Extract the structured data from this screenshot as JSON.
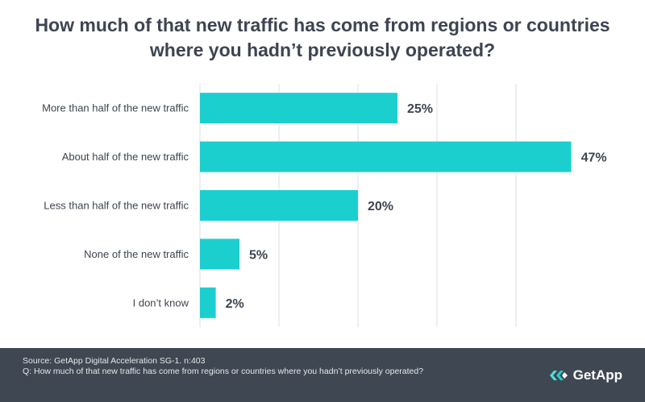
{
  "chart_data": {
    "type": "bar",
    "orientation": "horizontal",
    "title": "How much of that new traffic has come from regions or countries where you hadn’t previously operated?",
    "categories": [
      "More than half of the new traffic",
      "About half of the new traffic",
      "Less than half of the new traffic",
      "None of the new traffic",
      "I don’t know"
    ],
    "values": [
      25,
      47,
      20,
      5,
      2
    ],
    "value_labels": [
      "25%",
      "47%",
      "20%",
      "5%",
      "2%"
    ],
    "xlim": [
      0,
      50
    ],
    "unit": "%",
    "grid": true,
    "bar_color": "#1ccfcf"
  },
  "footer": {
    "source": "Source: GetApp Digital Acceleration SG-1. n:403",
    "question": "Q: How much of that new traffic has come from regions or countries where you hadn’t previously operated?",
    "logo": "GetApp",
    "logo_icon": "getapp-chevron-icon"
  },
  "colors": {
    "footer_bg": "#3f4752",
    "text": "#3d4551",
    "grid": "#dcdfe3"
  }
}
